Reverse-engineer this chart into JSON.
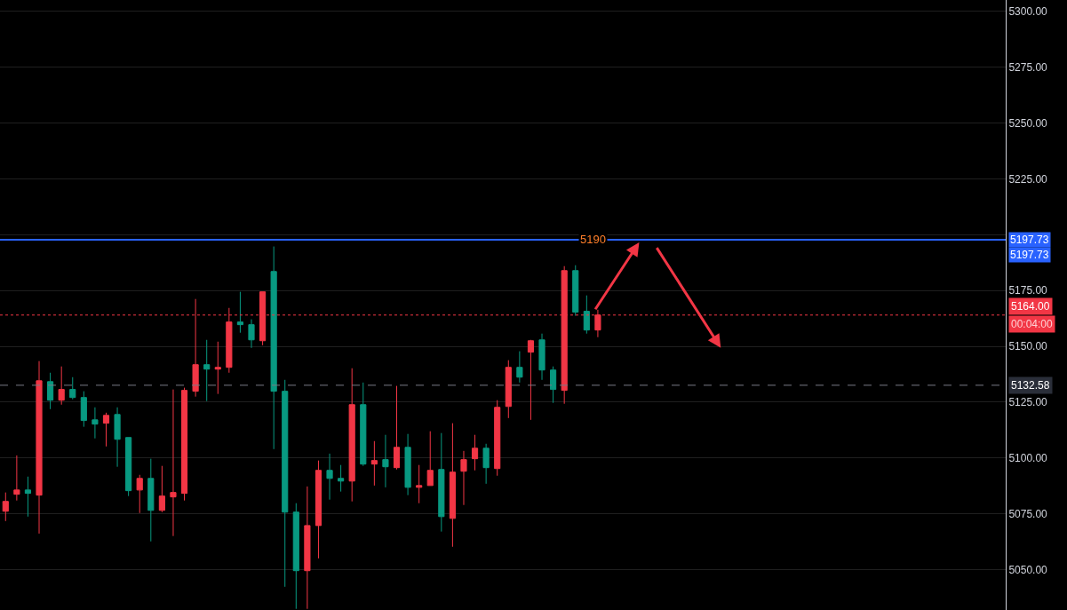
{
  "chart_data": {
    "type": "candlestick",
    "categories": [
      null,
      null,
      null,
      null,
      null,
      null,
      null,
      null,
      null,
      null,
      null,
      null,
      null,
      null,
      null,
      null,
      null,
      null,
      null,
      null,
      null,
      null,
      null,
      null,
      null,
      null,
      null,
      null,
      null,
      null,
      null,
      null,
      null,
      null,
      null,
      null,
      null,
      null,
      null,
      null,
      null,
      null,
      null,
      null,
      null,
      null,
      null,
      null,
      null,
      null,
      null,
      null,
      null,
      null,
      null,
      null,
      null,
      null,
      null,
      null,
      null,
      null,
      null,
      null,
      null,
      null,
      null,
      null,
      null,
      null,
      null,
      null,
      null,
      null,
      null,
      null,
      null,
      null,
      null,
      null,
      null,
      null,
      null,
      null,
      null,
      null,
      null,
      null,
      null,
      null
    ],
    "ohlc": [
      [
        5076.2,
        5084.6,
        5071.8,
        5080.6
      ],
      [
        5083.8,
        5101.2,
        5081.0,
        5085.7
      ],
      [
        5085.7,
        5091.7,
        5073.8,
        5084.2
      ],
      [
        5083.4,
        5143.4,
        5066.2,
        5134.6
      ],
      [
        5134.2,
        5138.2,
        5121.9,
        5125.9
      ],
      [
        5125.9,
        5141.0,
        5123.9,
        5130.7
      ],
      [
        5130.7,
        5136.2,
        5126.3,
        5127.1
      ],
      [
        5127.1,
        5129.9,
        5114.0,
        5116.8
      ],
      [
        5117.1,
        5122.7,
        5108.8,
        5115.2
      ],
      [
        5115.6,
        5120.3,
        5105.2,
        5119.1
      ],
      [
        5119.5,
        5122.7,
        5096.1,
        5108.4
      ],
      [
        5109.2,
        5109.2,
        5083.0,
        5085.4
      ],
      [
        5085.7,
        5092.5,
        5075.4,
        5090.9
      ],
      [
        5090.9,
        5099.7,
        5062.7,
        5076.6
      ],
      [
        5076.6,
        5096.5,
        5075.8,
        5083.0
      ],
      [
        5082.6,
        5130.7,
        5065.1,
        5084.6
      ],
      [
        5084.2,
        5131.5,
        5081.0,
        5130.3
      ],
      [
        5129.9,
        5171.2,
        5127.5,
        5141.8
      ],
      [
        5141.8,
        5152.9,
        5125.5,
        5139.8
      ],
      [
        5139.8,
        5152.1,
        5128.7,
        5140.6
      ],
      [
        5140.6,
        5167.2,
        5138.2,
        5160.9
      ],
      [
        5160.9,
        5174.4,
        5156.1,
        5159.7
      ],
      [
        5159.7,
        5162.1,
        5149.3,
        5152.9
      ],
      [
        5152.5,
        5174.4,
        5150.5,
        5174.4
      ],
      [
        5183.5,
        5194.7,
        5104.0,
        5129.9
      ],
      [
        5129.9,
        5135.0,
        5042.4,
        5075.8
      ],
      [
        5075.8,
        5079.8,
        5032.5,
        5049.6
      ],
      [
        5049.6,
        5087.3,
        5032.5,
        5069.8
      ],
      [
        5069.8,
        5098.9,
        5055.1,
        5094.5
      ],
      [
        5094.5,
        5102.0,
        5081.4,
        5090.9
      ],
      [
        5090.9,
        5096.9,
        5085.0,
        5089.7
      ],
      [
        5089.7,
        5140.2,
        5080.6,
        5123.9
      ],
      [
        5123.9,
        5133.8,
        5096.5,
        5097.3
      ],
      [
        5097.3,
        5107.6,
        5087.7,
        5098.9
      ],
      [
        5099.3,
        5110.4,
        5086.9,
        5096.1
      ],
      [
        5095.7,
        5132.3,
        5094.9,
        5104.8
      ],
      [
        5104.8,
        5110.8,
        5083.4,
        5086.9
      ],
      [
        5086.9,
        5096.9,
        5079.8,
        5087.7
      ],
      [
        5087.7,
        5112.0,
        5087.7,
        5094.5
      ],
      [
        5094.9,
        5111.2,
        5067.1,
        5073.8
      ],
      [
        5073.0,
        5115.6,
        5060.3,
        5093.7
      ],
      [
        5094.1,
        5103.2,
        5079.0,
        5099.3
      ],
      [
        5099.7,
        5110.4,
        5094.5,
        5104.4
      ],
      [
        5104.4,
        5106.4,
        5088.5,
        5095.7
      ],
      [
        5095.3,
        5125.9,
        5092.1,
        5122.7
      ],
      [
        5123.1,
        5143.8,
        5117.9,
        5140.6
      ],
      [
        5140.6,
        5147.8,
        5133.8,
        5136.2
      ],
      [
        5147.4,
        5152.9,
        5117.1,
        5152.5
      ],
      [
        5152.9,
        5155.7,
        5135.0,
        5139.4
      ],
      [
        5139.4,
        5141.0,
        5124.7,
        5130.7
      ],
      [
        5130.3,
        5185.9,
        5124.3,
        5183.9
      ],
      [
        5183.9,
        5186.3,
        5163.7,
        5165.3
      ],
      [
        5165.7,
        5172.8,
        5155.7,
        5157.3
      ],
      [
        5157.3,
        5166.4,
        5154.1,
        5164.0
      ],
      null,
      null,
      null,
      null,
      null,
      null,
      null,
      null,
      null,
      null,
      null,
      null,
      null,
      null,
      null,
      null,
      null,
      null,
      null,
      null,
      null,
      null,
      null,
      null,
      null,
      null,
      null,
      null,
      null,
      null,
      null,
      null,
      null,
      null,
      null,
      null
    ],
    "colors": [
      "#f23645",
      "#f23645",
      "#089981",
      "#f23645",
      "#089981",
      "#f23645",
      "#089981",
      "#089981",
      "#089981",
      "#f23645",
      "#089981",
      "#089981",
      "#f23645",
      "#089981",
      "#f23645",
      "#f23645",
      "#f23645",
      "#f23645",
      "#089981",
      "#f23645",
      "#f23645",
      "#089981",
      "#089981",
      "#f23645",
      "#089981",
      "#089981",
      "#089981",
      "#f23645",
      "#f23645",
      "#089981",
      "#089981",
      "#f23645",
      "#089981",
      "#f23645",
      "#089981",
      "#f23645",
      "#089981",
      "#f23645",
      "#f23645",
      "#089981",
      "#f23645",
      "#f23645",
      "#f23645",
      "#089981",
      "#f23645",
      "#f23645",
      "#089981",
      "#f23645",
      "#089981",
      "#089981",
      "#f23645",
      "#089981",
      "#089981",
      "#f23645",
      null,
      null,
      null,
      null,
      null,
      null,
      null,
      null,
      null,
      null,
      null,
      null,
      null,
      null,
      null,
      null,
      null,
      null,
      null,
      null,
      null,
      null,
      null,
      null,
      null,
      null,
      null,
      null,
      null,
      null,
      null,
      null,
      null,
      null,
      null,
      null
    ],
    "annotations": [
      "5190",
      "00:04:00"
    ],
    "ylim": [
      5032,
      5305
    ],
    "yticks": [
      {
        "value": 5050,
        "label": "5050.00"
      },
      {
        "value": 5075,
        "label": "5075.00"
      },
      {
        "value": 5100,
        "label": "5100.00"
      },
      {
        "value": 5125,
        "label": "5125.00"
      },
      {
        "value": 5150,
        "label": "5150.00"
      },
      {
        "value": 5175,
        "label": "5175.00"
      },
      {
        "value": 5200,
        "label": null
      },
      {
        "value": 5225,
        "label": "5225.00"
      },
      {
        "value": 5250,
        "label": "5250.00"
      },
      {
        "value": 5275,
        "label": "5275.00"
      },
      {
        "value": 5300,
        "label": "5300.00"
      }
    ],
    "ref_lines": [
      {
        "axis": "y",
        "value": 5197.73,
        "label": "5197.73",
        "color": "#2962ff",
        "line_style": "solid"
      },
      {
        "axis": "y",
        "value": 5164.0,
        "label": "5164.00",
        "color": "#f23645",
        "line_style": "dotted"
      },
      {
        "axis": "y",
        "value": 5132.58,
        "label": "5132.58",
        "color": "#787b86",
        "line_style": "dashed"
      }
    ],
    "grid": "y",
    "tick_labels": "y"
  }
}
